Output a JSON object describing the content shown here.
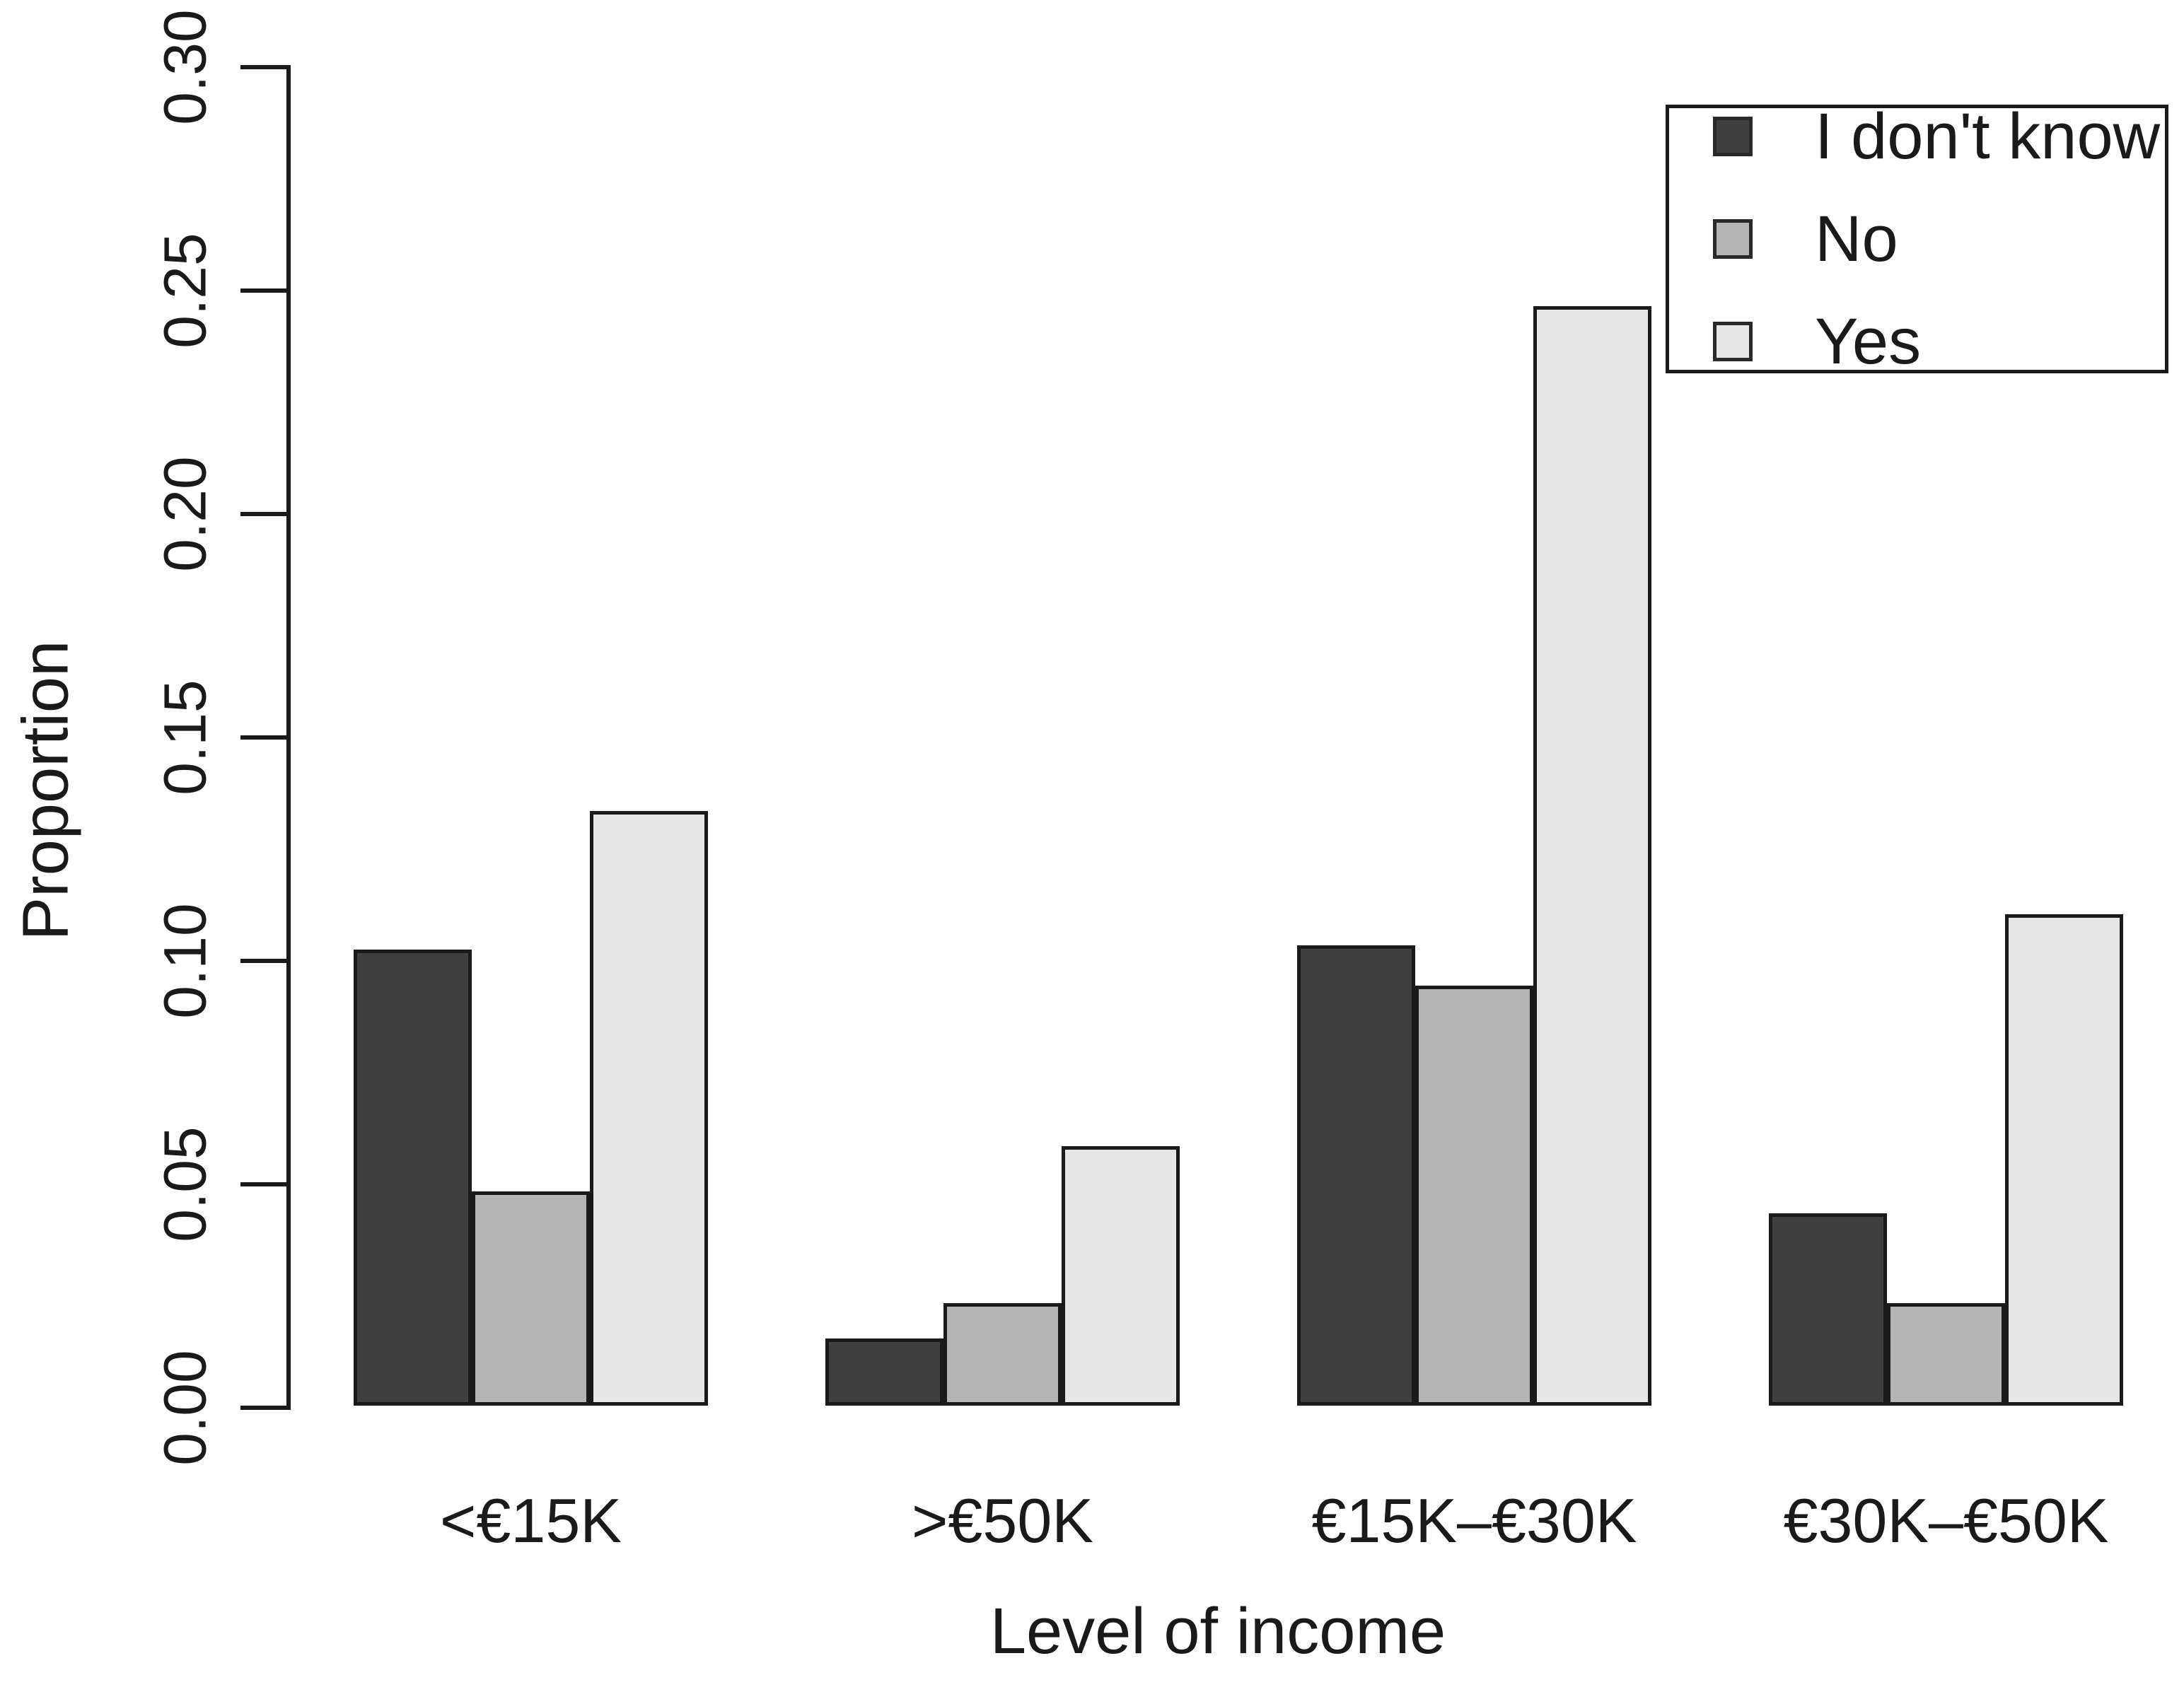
{
  "chart_data": {
    "type": "bar",
    "title": "",
    "xlabel": "Level of income",
    "ylabel": "Proportion",
    "categories": [
      "<€15K",
      ">€50K",
      "€15K–€30K",
      "€30K–€50K"
    ],
    "series": [
      {
        "name": "I don't know",
        "color": "#3f3f3f",
        "values": [
          0.102,
          0.015,
          0.103,
          0.043
        ]
      },
      {
        "name": "No",
        "color": "#b4b4b4",
        "values": [
          0.048,
          0.023,
          0.094,
          0.023
        ]
      },
      {
        "name": "Yes",
        "color": "#e6e6e6",
        "values": [
          0.133,
          0.058,
          0.246,
          0.11
        ]
      }
    ],
    "ylim": [
      0,
      0.3
    ],
    "y_tick_step": 0.05,
    "y_ticks": [
      "0.00",
      "0.05",
      "0.10",
      "0.15",
      "0.20",
      "0.25",
      "0.30"
    ],
    "grid": "off",
    "legend_position": "top-right",
    "bar_border_color": "#1a1a1a"
  }
}
